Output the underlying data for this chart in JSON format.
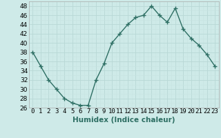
{
  "x": [
    0,
    1,
    2,
    3,
    4,
    5,
    6,
    7,
    8,
    9,
    10,
    11,
    12,
    13,
    14,
    15,
    16,
    17,
    18,
    19,
    20,
    21,
    22,
    23
  ],
  "y": [
    38,
    35,
    32,
    30,
    28,
    27,
    26.5,
    26.5,
    32,
    35.5,
    40,
    42,
    44,
    45.5,
    46,
    48,
    46,
    44.5,
    47.5,
    43,
    41,
    39.5,
    37.5,
    35
  ],
  "line_color": "#2d6e63",
  "marker": "+",
  "marker_size": 4,
  "bg_color": "#ceeae8",
  "grid_major_color": "#b8d8d5",
  "grid_minor_color": "#c8e4e1",
  "xlabel": "Humidex (Indice chaleur)",
  "ylim": [
    26,
    49
  ],
  "yticks": [
    26,
    28,
    30,
    32,
    34,
    36,
    38,
    40,
    42,
    44,
    46,
    48
  ],
  "xlabel_fontsize": 7.5,
  "tick_fontsize": 6.5
}
